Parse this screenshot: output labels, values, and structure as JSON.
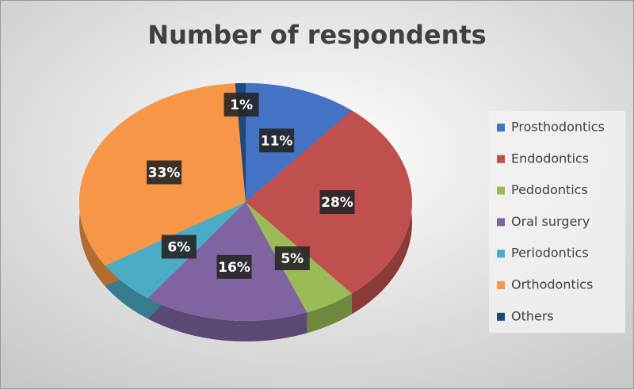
{
  "chart_data": {
    "type": "pie",
    "title": "Number of respondents",
    "categories": [
      "Prosthodontics",
      "Endodontics",
      "Pedodontics",
      "Oral surgery",
      "Periodontics",
      "Orthodontics",
      "Others"
    ],
    "values": [
      11,
      28,
      5,
      16,
      6,
      33,
      1
    ],
    "value_labels": [
      "11%",
      "28%",
      "5%",
      "16%",
      "6%",
      "33%",
      "1%"
    ],
    "colors": [
      "#4472c4",
      "#c0504d",
      "#9bbb59",
      "#8064a2",
      "#4bacc6",
      "#f79646",
      "#1f497d"
    ],
    "legend": "right"
  }
}
